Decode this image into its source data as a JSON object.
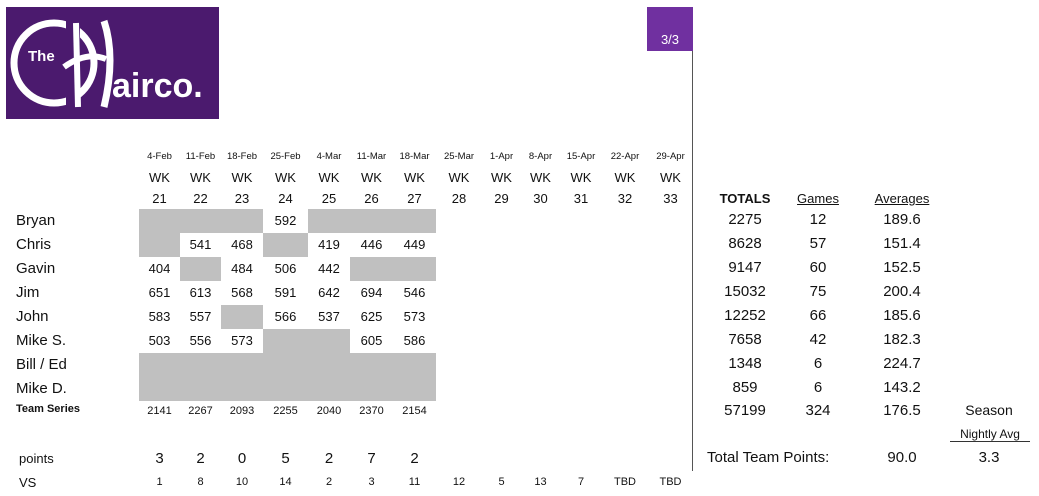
{
  "logo": {
    "small": "The",
    "big": "airco."
  },
  "page_tag": "3/3",
  "weeks": [
    {
      "date": "4-Feb",
      "wk": "WK",
      "num": "21"
    },
    {
      "date": "11-Feb",
      "wk": "WK",
      "num": "22"
    },
    {
      "date": "18-Feb",
      "wk": "WK",
      "num": "23"
    },
    {
      "date": "25-Feb",
      "wk": "WK",
      "num": "24"
    },
    {
      "date": "4-Mar",
      "wk": "WK",
      "num": "25"
    },
    {
      "date": "11-Mar",
      "wk": "WK",
      "num": "26"
    },
    {
      "date": "18-Mar",
      "wk": "WK",
      "num": "27"
    },
    {
      "date": "25-Mar",
      "wk": "WK",
      "num": "28"
    },
    {
      "date": "1-Apr",
      "wk": "WK",
      "num": "29"
    },
    {
      "date": "8-Apr",
      "wk": "WK",
      "num": "30"
    },
    {
      "date": "15-Apr",
      "wk": "WK",
      "num": "31"
    },
    {
      "date": "22-Apr",
      "wk": "WK",
      "num": "32"
    },
    {
      "date": "29-Apr",
      "wk": "WK",
      "num": "33"
    }
  ],
  "headers": {
    "totals": "TOTALS",
    "games": "Games",
    "averages": "Averages"
  },
  "players": [
    {
      "name": "Bryan",
      "scores": [
        null,
        null,
        null,
        "592",
        null,
        null,
        null
      ],
      "total": "2275",
      "games": "12",
      "avg": "189.6"
    },
    {
      "name": "Chris",
      "scores": [
        null,
        "541",
        "468",
        null,
        "419",
        "446",
        "449"
      ],
      "total": "8628",
      "games": "57",
      "avg": "151.4"
    },
    {
      "name": "Gavin",
      "scores": [
        "404",
        null,
        "484",
        "506",
        "442",
        null,
        null
      ],
      "total": "9147",
      "games": "60",
      "avg": "152.5"
    },
    {
      "name": "Jim",
      "scores": [
        "651",
        "613",
        "568",
        "591",
        "642",
        "694",
        "546"
      ],
      "total": "15032",
      "games": "75",
      "avg": "200.4"
    },
    {
      "name": "John",
      "scores": [
        "583",
        "557",
        null,
        "566",
        "537",
        "625",
        "573"
      ],
      "total": "12252",
      "games": "66",
      "avg": "185.6"
    },
    {
      "name": "Mike S.",
      "scores": [
        "503",
        "556",
        "573",
        null,
        null,
        "605",
        "586"
      ],
      "total": "7658",
      "games": "42",
      "avg": "182.3"
    },
    {
      "name": "Bill / Ed",
      "scores": [
        null,
        null,
        null,
        null,
        null,
        null,
        null
      ],
      "total": "1348",
      "games": "6",
      "avg": "224.7"
    },
    {
      "name": "Mike D.",
      "scores": [
        null,
        null,
        null,
        null,
        null,
        null,
        null
      ],
      "total": "859",
      "games": "6",
      "avg": "143.2"
    }
  ],
  "team_series": {
    "label": "Team Series",
    "values": [
      "2141",
      "2267",
      "2093",
      "2255",
      "2040",
      "2370",
      "2154"
    ],
    "total": "57199",
    "games": "324",
    "avg": "176.5"
  },
  "season": {
    "label": "Season",
    "sublabel": "Nightly Avg",
    "value": "3.3"
  },
  "points": {
    "label": "points",
    "values": [
      "3",
      "2",
      "0",
      "5",
      "2",
      "7",
      "2"
    ]
  },
  "total_team_points": {
    "label": "Total Team Points:",
    "value": "90.0"
  },
  "vs": {
    "label": "VS",
    "values": [
      "1",
      "8",
      "10",
      "14",
      "2",
      "3",
      "11",
      "12",
      "5",
      "13",
      "7",
      "TBD",
      "TBD"
    ]
  },
  "colors": {
    "brand_purple": "#4b1a6e",
    "tag_purple": "#7030a0",
    "shade_gray": "#c0c0c0"
  }
}
